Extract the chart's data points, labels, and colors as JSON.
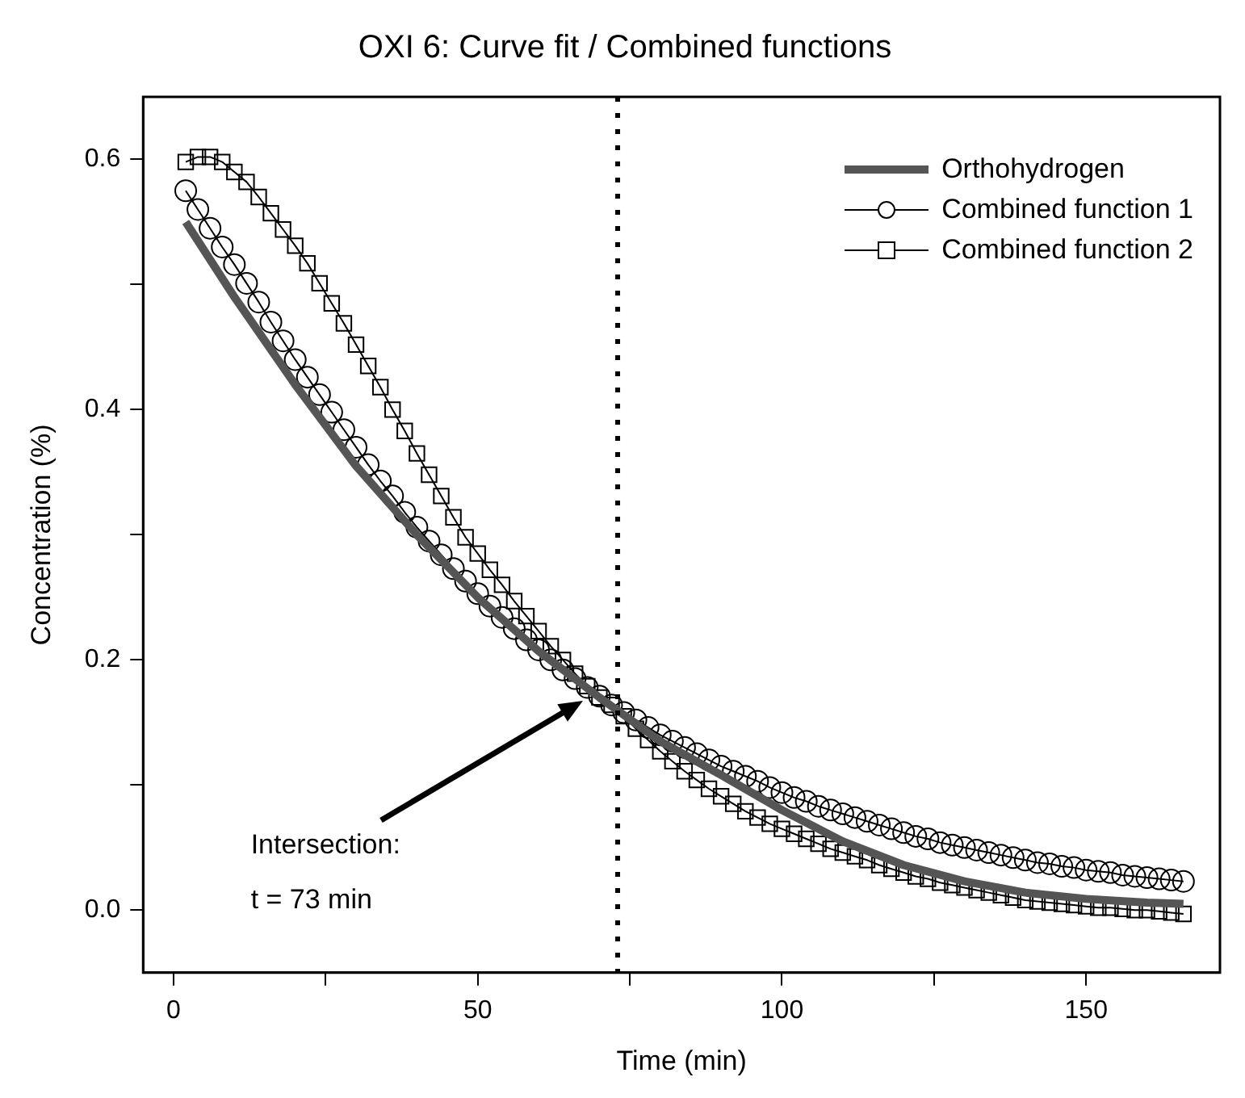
{
  "chart_data": {
    "type": "line",
    "title": "OXI 6: Curve fit / Combined functions",
    "xlabel": "Time (min)",
    "ylabel": "Concentration (%)",
    "xlim": [
      -5,
      172
    ],
    "xticks": [
      0,
      {
        "value": 25,
        "label": null
      },
      50,
      {
        "value": 75,
        "label": null
      },
      100,
      {
        "value": 125,
        "label": null
      },
      150
    ],
    "ylim": [
      -0.05,
      0.65
    ],
    "yticks": [
      {
        "value": 0,
        "label": "0.0"
      },
      {
        "value": 0.1,
        "label": null
      },
      0.2,
      {
        "value": 0.3,
        "label": null
      },
      0.4,
      {
        "value": 0.5,
        "label": null
      },
      0.6
    ],
    "grid": false,
    "legend": "top right",
    "line_style": "solid",
    "ref_lines": [
      {
        "axis": "x",
        "value": 73,
        "color": "#000000",
        "line_style": "dotted"
      }
    ],
    "annotations": [
      "Intersection:\nt = 73 min"
    ],
    "series": [
      {
        "name": "Orthohydrogen",
        "color": "#555555",
        "marker": "none",
        "x": [
          2,
          10,
          20,
          30,
          40,
          50,
          60,
          70,
          80,
          90,
          100,
          110,
          120,
          130,
          140,
          150,
          160,
          166
        ],
        "values": [
          0.55,
          0.49,
          0.42,
          0.355,
          0.3,
          0.25,
          0.207,
          0.17,
          0.135,
          0.108,
          0.08,
          0.055,
          0.036,
          0.023,
          0.014,
          0.009,
          0.006,
          0.005
        ]
      },
      {
        "name": "Combined function 1",
        "color": "#000000",
        "marker": "circle",
        "x": [
          2,
          4,
          6,
          8,
          10,
          12,
          14,
          16,
          18,
          20,
          22,
          24,
          26,
          28,
          30,
          32,
          34,
          36,
          38,
          40,
          42,
          44,
          46,
          48,
          50,
          52,
          54,
          56,
          58,
          60,
          62,
          64,
          66,
          68,
          70,
          72,
          74,
          76,
          78,
          80,
          82,
          84,
          86,
          88,
          90,
          92,
          94,
          96,
          98,
          100,
          102,
          104,
          106,
          108,
          110,
          112,
          114,
          116,
          118,
          120,
          122,
          124,
          126,
          128,
          130,
          132,
          134,
          136,
          138,
          140,
          142,
          144,
          146,
          148,
          150,
          152,
          154,
          156,
          158,
          160,
          162,
          164,
          166
        ],
        "values": [
          0.575,
          0.56,
          0.545,
          0.53,
          0.516,
          0.501,
          0.486,
          0.47,
          0.455,
          0.44,
          0.426,
          0.412,
          0.398,
          0.384,
          0.37,
          0.356,
          0.343,
          0.331,
          0.318,
          0.306,
          0.295,
          0.284,
          0.273,
          0.263,
          0.253,
          0.243,
          0.234,
          0.225,
          0.216,
          0.208,
          0.2,
          0.192,
          0.185,
          0.178,
          0.171,
          0.164,
          0.158,
          0.152,
          0.146,
          0.14,
          0.135,
          0.13,
          0.125,
          0.12,
          0.115,
          0.111,
          0.107,
          0.103,
          0.098,
          0.094,
          0.09,
          0.087,
          0.083,
          0.08,
          0.077,
          0.074,
          0.071,
          0.068,
          0.065,
          0.062,
          0.059,
          0.057,
          0.054,
          0.052,
          0.05,
          0.048,
          0.046,
          0.044,
          0.042,
          0.04,
          0.038,
          0.037,
          0.035,
          0.034,
          0.032,
          0.031,
          0.03,
          0.028,
          0.027,
          0.026,
          0.025,
          0.024,
          0.023
        ]
      },
      {
        "name": "Combined function 2",
        "color": "#000000",
        "marker": "square",
        "x": [
          2,
          4,
          6,
          8,
          10,
          12,
          14,
          16,
          18,
          20,
          22,
          24,
          26,
          28,
          30,
          32,
          34,
          36,
          38,
          40,
          42,
          44,
          46,
          48,
          50,
          52,
          54,
          56,
          58,
          60,
          62,
          64,
          66,
          68,
          70,
          72,
          74,
          76,
          78,
          80,
          82,
          84,
          86,
          88,
          90,
          92,
          94,
          96,
          98,
          100,
          102,
          104,
          106,
          108,
          110,
          112,
          114,
          116,
          118,
          120,
          122,
          124,
          126,
          128,
          130,
          132,
          134,
          136,
          138,
          140,
          142,
          144,
          146,
          148,
          150,
          152,
          154,
          156,
          158,
          160,
          162,
          164,
          166
        ],
        "values": [
          0.598,
          0.602,
          0.602,
          0.598,
          0.59,
          0.582,
          0.57,
          0.557,
          0.544,
          0.531,
          0.517,
          0.501,
          0.485,
          0.469,
          0.452,
          0.435,
          0.418,
          0.4,
          0.383,
          0.365,
          0.348,
          0.331,
          0.314,
          0.298,
          0.285,
          0.272,
          0.26,
          0.247,
          0.235,
          0.223,
          0.211,
          0.2,
          0.189,
          0.179,
          0.17,
          0.164,
          0.155,
          0.145,
          0.136,
          0.127,
          0.119,
          0.111,
          0.104,
          0.097,
          0.091,
          0.085,
          0.079,
          0.074,
          0.069,
          0.065,
          0.061,
          0.057,
          0.053,
          0.049,
          0.046,
          0.043,
          0.04,
          0.036,
          0.033,
          0.03,
          0.027,
          0.025,
          0.022,
          0.02,
          0.018,
          0.016,
          0.014,
          0.012,
          0.01,
          0.008,
          0.007,
          0.006,
          0.005,
          0.004,
          0.003,
          0.002,
          0.002,
          0.001,
          0,
          0,
          -0.001,
          -0.002,
          -0.003
        ]
      }
    ]
  }
}
